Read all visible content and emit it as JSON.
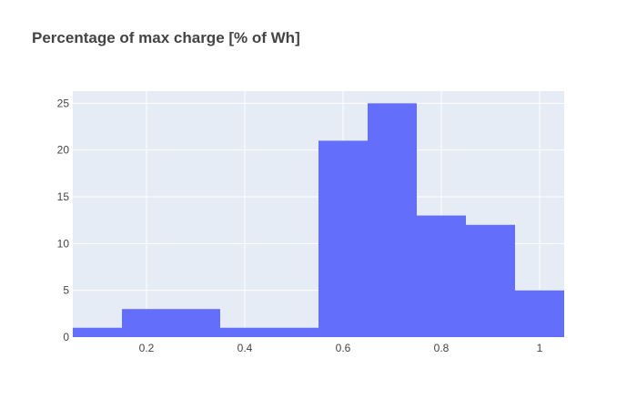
{
  "chart_data": {
    "type": "bar",
    "subtype": "histogram",
    "title": "Percentage of max charge [% of Wh]",
    "xlabel": "",
    "ylabel": "",
    "bins": [
      {
        "x0": 0.05,
        "x1": 0.15,
        "count": 1
      },
      {
        "x0": 0.15,
        "x1": 0.25,
        "count": 3
      },
      {
        "x0": 0.25,
        "x1": 0.35,
        "count": 3
      },
      {
        "x0": 0.35,
        "x1": 0.45,
        "count": 1
      },
      {
        "x0": 0.45,
        "x1": 0.55,
        "count": 1
      },
      {
        "x0": 0.55,
        "x1": 0.65,
        "count": 21
      },
      {
        "x0": 0.65,
        "x1": 0.75,
        "count": 25
      },
      {
        "x0": 0.75,
        "x1": 0.85,
        "count": 13
      },
      {
        "x0": 0.85,
        "x1": 0.95,
        "count": 12
      },
      {
        "x0": 0.95,
        "x1": 1.05,
        "count": 5
      }
    ],
    "xlim": [
      0.05,
      1.05
    ],
    "ylim": [
      0,
      26.3
    ],
    "xticks": [
      0.2,
      0.4,
      0.6,
      0.8,
      1
    ],
    "xtick_labels": [
      "0.2",
      "0.4",
      "0.6",
      "0.8",
      "1"
    ],
    "yticks": [
      0,
      5,
      10,
      15,
      20,
      25
    ],
    "ytick_labels": [
      "0",
      "5",
      "10",
      "15",
      "20",
      "25"
    ],
    "grid": true,
    "colors": {
      "bar": "#636efa",
      "plot_background": "#e5ecf6",
      "grid": "#ffffff",
      "text": "#444444"
    }
  }
}
